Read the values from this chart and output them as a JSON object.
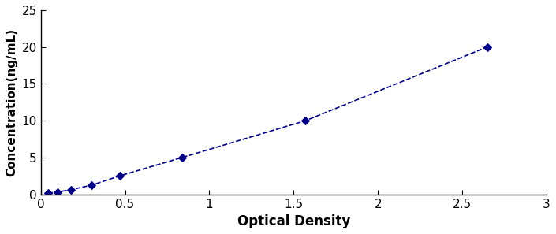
{
  "x_data": [
    0.044,
    0.1,
    0.178,
    0.302,
    0.468,
    0.838,
    1.57,
    2.647
  ],
  "y_data": [
    0.156,
    0.312,
    0.625,
    1.25,
    2.5,
    5.0,
    10.0,
    20.0
  ],
  "line_color": "#00008B",
  "marker_color": "#00008B",
  "marker_style": "D",
  "marker_size": 5,
  "line_width": 1.2,
  "xlabel": "Optical Density",
  "ylabel": "Concentration(ng/mL)",
  "xlim": [
    0,
    3
  ],
  "ylim": [
    0,
    25
  ],
  "xticks": [
    0,
    0.5,
    1,
    1.5,
    2,
    2.5,
    3
  ],
  "yticks": [
    0,
    5,
    10,
    15,
    20,
    25
  ],
  "xlabel_fontsize": 12,
  "ylabel_fontsize": 11,
  "tick_fontsize": 11,
  "background_color": "#ffffff",
  "spine_color": "#000000"
}
